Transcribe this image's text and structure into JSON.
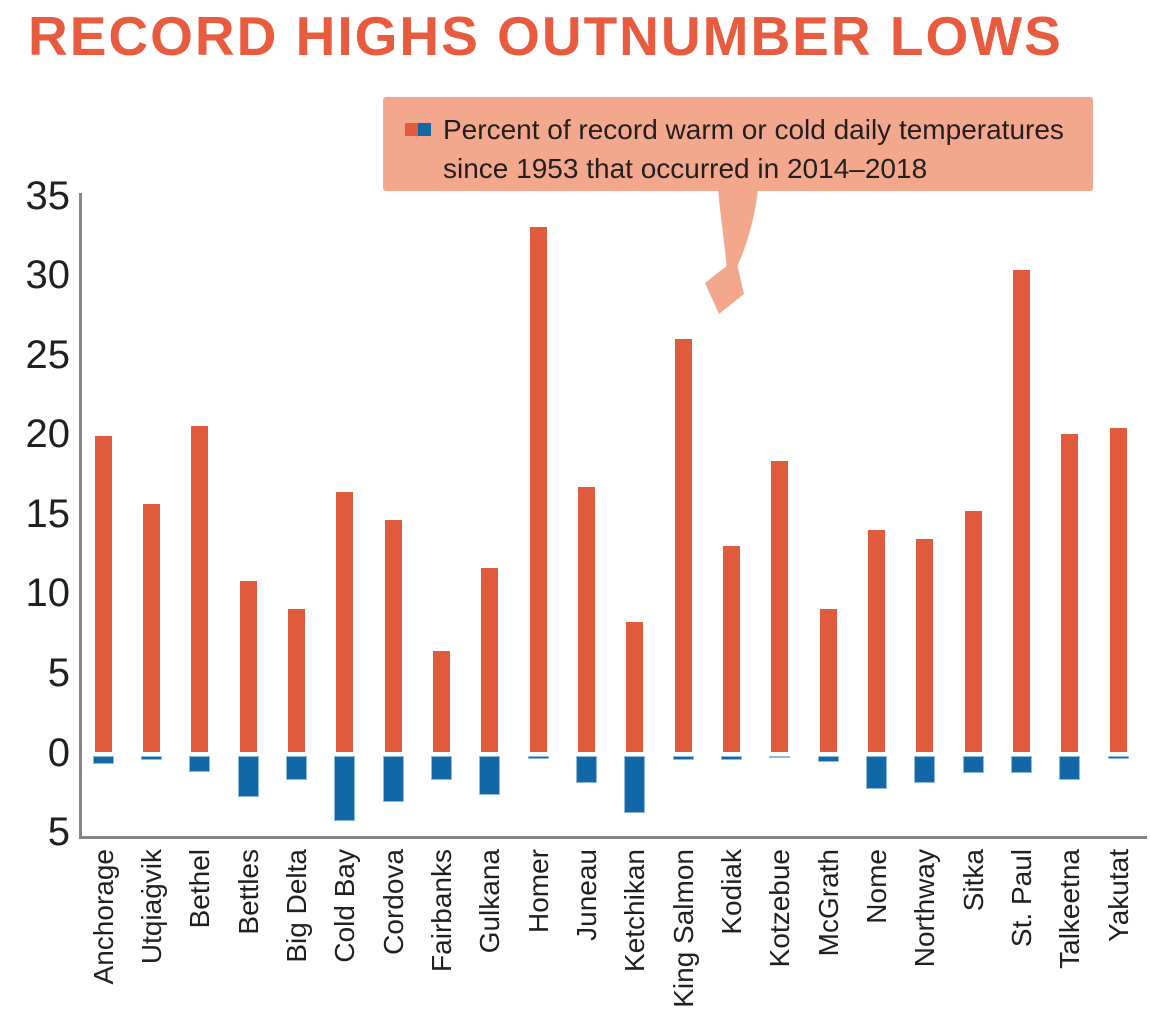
{
  "title": {
    "text": "RECORD HIGHS OUTNUMBER LOWS",
    "color": "#E85B3E"
  },
  "legend": {
    "background": "#F3A88D",
    "text_color": "#231F20",
    "line1": "Percent of record warm or cold daily temperatures",
    "line2": "since 1953 that occurred in 2014–2018",
    "swatches": [
      {
        "name": "record-warm",
        "color": "#E15C3C"
      },
      {
        "name": "record-cold",
        "color": "#1268A7"
      }
    ]
  },
  "chart_data": {
    "type": "bar",
    "title": "RECORD HIGHS OUTNUMBER LOWS",
    "subtitle_note": "Percent of record warm or cold daily temperatures since 1953 that occurred in 2014–2018",
    "categories": [
      "Anchorage",
      "Utqiaġvik",
      "Bethel",
      "Bettles",
      "Big Delta",
      "Cold Bay",
      "Cordova",
      "Fairbanks",
      "Gulkana",
      "Homer",
      "Juneau",
      "Ketchikan",
      "King Salmon",
      "Kodiak",
      "Kotzebue",
      "McGrath",
      "Nome",
      "Northway",
      "Sitka",
      "St. Paul",
      "Talkeetna",
      "Yakutat"
    ],
    "series": [
      {
        "name": "record warm",
        "color": "#E15C3C",
        "values": [
          19.9,
          15.6,
          20.5,
          10.8,
          9.0,
          16.4,
          14.6,
          6.4,
          11.6,
          33.0,
          16.7,
          8.2,
          26.0,
          13.0,
          18.3,
          9.0,
          14.0,
          13.4,
          15.2,
          30.3,
          20.0,
          20.4
        ]
      },
      {
        "name": "record cold",
        "color": "#1268A7",
        "values": [
          -0.7,
          -0.5,
          -1.2,
          -2.8,
          -1.7,
          -4.3,
          -3.1,
          -1.7,
          -2.7,
          -0.4,
          -1.9,
          -3.8,
          -0.5,
          -0.5,
          -0.3,
          -0.6,
          -2.3,
          -1.9,
          -1.3,
          -1.3,
          -1.7,
          -0.4
        ]
      }
    ],
    "xlabel": "",
    "ylabel": "",
    "ylim": [
      -5,
      35
    ],
    "yticks": [
      35,
      30,
      25,
      20,
      15,
      10,
      5,
      0,
      -5
    ],
    "ytick_labels": [
      "35",
      "30",
      "25",
      "20",
      "15",
      "10",
      "5",
      "0",
      "5"
    ],
    "grid": false,
    "legend_position": "top annotation box with arrow pointing into plot",
    "axis_color": "#85868B",
    "tick_text_color": "#231F20"
  }
}
